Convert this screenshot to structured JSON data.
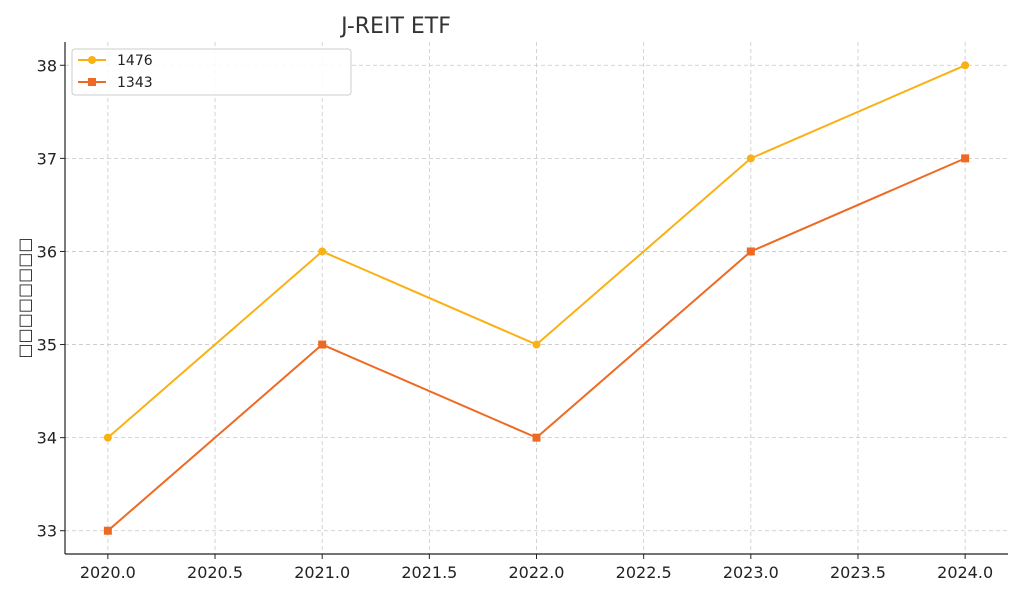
{
  "chart_data": {
    "type": "line",
    "title": "J-REIT ETF",
    "xlabel": "",
    "ylabel": "□□□□□□□□",
    "xlim": [
      2019.8,
      2024.2
    ],
    "ylim": [
      32.75,
      38.25
    ],
    "xticks": [
      2020.0,
      2020.5,
      2021.0,
      2021.5,
      2022.0,
      2022.5,
      2023.0,
      2023.5,
      2024.0
    ],
    "xtick_labels": [
      "2020.0",
      "2020.5",
      "2021.0",
      "2021.5",
      "2022.0",
      "2022.5",
      "2023.0",
      "2023.5",
      "2024.0"
    ],
    "yticks": [
      33,
      34,
      35,
      36,
      37,
      38
    ],
    "ytick_labels": [
      "33",
      "34",
      "35",
      "36",
      "37",
      "38"
    ],
    "grid": true,
    "legend_position": "top-left",
    "x": [
      2020,
      2021,
      2022,
      2023,
      2024
    ],
    "series": [
      {
        "name": "1476",
        "values": [
          34,
          36,
          35,
          37,
          38
        ],
        "color": "#F9B115",
        "marker": "circle"
      },
      {
        "name": "1343",
        "values": [
          33,
          35,
          34,
          36,
          37
        ],
        "color": "#EE6A24",
        "marker": "square"
      }
    ]
  }
}
